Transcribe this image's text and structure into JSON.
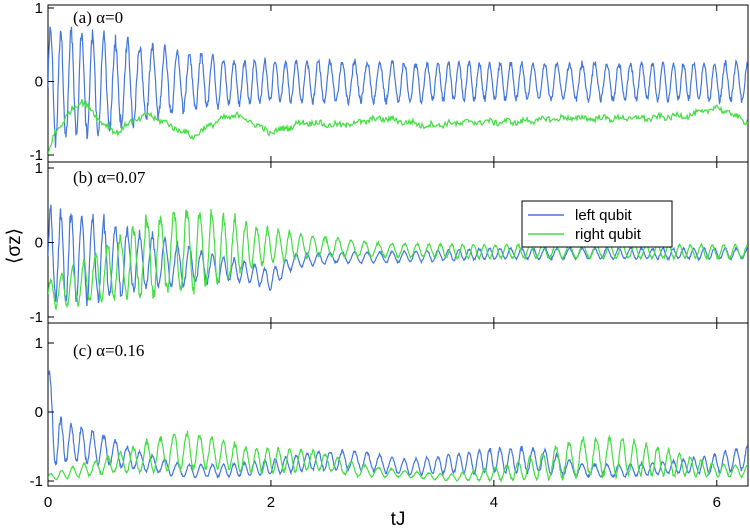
{
  "chart_data": {
    "type": "line",
    "xlabel": "tJ",
    "ylabel": "⟨σz⟩",
    "xlim": [
      0,
      6.28
    ],
    "x_ticks": [
      "0",
      "2",
      "4",
      "6"
    ],
    "legend": {
      "placement": "top-right of panel (b)",
      "entries": [
        "left qubit",
        "right qubit"
      ]
    },
    "colors": {
      "left qubit": "#4477dd",
      "right qubit": "#44dd44"
    },
    "panels": [
      {
        "label": "(a) α=0",
        "ylim": [
          -1,
          1
        ],
        "y_ticks": [
          "-1",
          "0",
          "1"
        ],
        "series": [
          {
            "name": "left qubit",
            "note_values": "approximate envelope of fast oscillation",
            "x": [
              0,
              0.3,
              0.6,
              0.9,
              1.2,
              1.6,
              2.0,
              3.0,
              4.0,
              5.0,
              6.0,
              6.28
            ],
            "center": [
              -0.05,
              -0.05,
              -0.05,
              0,
              0,
              0,
              0,
              0,
              0,
              0,
              0,
              0
            ],
            "amplitude": [
              0.85,
              0.8,
              0.7,
              0.55,
              0.45,
              0.35,
              0.32,
              0.3,
              0.28,
              0.28,
              0.28,
              0.28
            ]
          },
          {
            "name": "right qubit",
            "x": [
              0,
              0.05,
              0.15,
              0.3,
              0.45,
              0.6,
              0.75,
              0.9,
              1.1,
              1.3,
              1.5,
              1.7,
              2.0,
              2.3,
              2.6,
              3.0,
              3.4,
              3.8,
              4.2,
              4.6,
              5.0,
              5.4,
              5.8,
              6.0,
              6.28
            ],
            "y": [
              -1.0,
              -0.75,
              -0.5,
              -0.25,
              -0.5,
              -0.7,
              -0.55,
              -0.45,
              -0.6,
              -0.75,
              -0.55,
              -0.45,
              -0.7,
              -0.55,
              -0.6,
              -0.5,
              -0.6,
              -0.55,
              -0.55,
              -0.5,
              -0.5,
              -0.5,
              -0.45,
              -0.35,
              -0.55
            ]
          }
        ]
      },
      {
        "label": "(b) α=0.07",
        "ylim": [
          -1,
          1
        ],
        "y_ticks": [
          "-1",
          "0",
          "1"
        ],
        "series": [
          {
            "name": "left qubit",
            "x": [
              0,
              0.3,
              0.6,
              0.9,
              1.2,
              1.5,
              1.8,
              2.0,
              2.2,
              2.6,
              3.0,
              4.0,
              5.0,
              6.28
            ],
            "center": [
              -0.2,
              -0.2,
              -0.25,
              -0.25,
              -0.3,
              -0.35,
              -0.4,
              -0.5,
              -0.25,
              -0.2,
              -0.2,
              -0.15,
              -0.15,
              -0.15
            ],
            "amplitude": [
              0.7,
              0.65,
              0.55,
              0.4,
              0.3,
              0.2,
              0.15,
              0.15,
              0.1,
              0.08,
              0.08,
              0.08,
              0.08,
              0.08
            ]
          },
          {
            "name": "right qubit",
            "x": [
              0,
              0.3,
              0.6,
              0.9,
              1.2,
              1.5,
              1.8,
              2.0,
              2.4,
              3.0,
              4.0,
              5.0,
              6.28
            ],
            "center": [
              -0.7,
              -0.55,
              -0.35,
              -0.2,
              -0.1,
              -0.1,
              -0.05,
              -0.05,
              -0.05,
              -0.1,
              -0.12,
              -0.12,
              -0.12
            ],
            "amplitude": [
              0.2,
              0.3,
              0.45,
              0.6,
              0.65,
              0.55,
              0.35,
              0.25,
              0.15,
              0.1,
              0.1,
              0.1,
              0.1
            ]
          }
        ]
      },
      {
        "label": "(c) α=0.16",
        "ylim": [
          -1,
          1
        ],
        "y_ticks": [
          "-1",
          "0",
          "1"
        ],
        "series": [
          {
            "name": "left qubit",
            "x": [
              0,
              0.05,
              0.2,
              0.5,
              0.8,
              1.2,
              1.6,
              2.0,
              2.4,
              2.8,
              3.2,
              3.6,
              4.0,
              4.4,
              4.8,
              5.2,
              5.6,
              6.0,
              6.28
            ],
            "center": [
              0.6,
              -0.4,
              -0.45,
              -0.55,
              -0.7,
              -0.85,
              -0.85,
              -0.8,
              -0.7,
              -0.7,
              -0.8,
              -0.75,
              -0.7,
              -0.7,
              -0.85,
              -0.85,
              -0.8,
              -0.75,
              -0.65
            ],
            "amplitude": [
              0.3,
              0.4,
              0.3,
              0.25,
              0.15,
              0.1,
              0.1,
              0.12,
              0.15,
              0.15,
              0.12,
              0.15,
              0.2,
              0.2,
              0.1,
              0.1,
              0.1,
              0.15,
              0.2
            ]
          },
          {
            "name": "right qubit",
            "x": [
              0,
              0.3,
              0.6,
              0.9,
              1.2,
              1.5,
              1.8,
              2.1,
              2.4,
              2.8,
              3.2,
              3.6,
              4.0,
              4.4,
              4.8,
              5.2,
              5.6,
              6.0,
              6.28
            ],
            "center": [
              -0.95,
              -0.85,
              -0.75,
              -0.65,
              -0.55,
              -0.6,
              -0.7,
              -0.7,
              -0.7,
              -0.85,
              -0.9,
              -0.95,
              -0.9,
              -0.8,
              -0.65,
              -0.65,
              -0.75,
              -0.85,
              -0.85
            ],
            "amplitude": [
              0.05,
              0.1,
              0.15,
              0.25,
              0.3,
              0.25,
              0.2,
              0.2,
              0.15,
              0.1,
              0.05,
              0.05,
              0.1,
              0.2,
              0.3,
              0.3,
              0.2,
              0.1,
              0.1
            ]
          }
        ]
      }
    ]
  }
}
